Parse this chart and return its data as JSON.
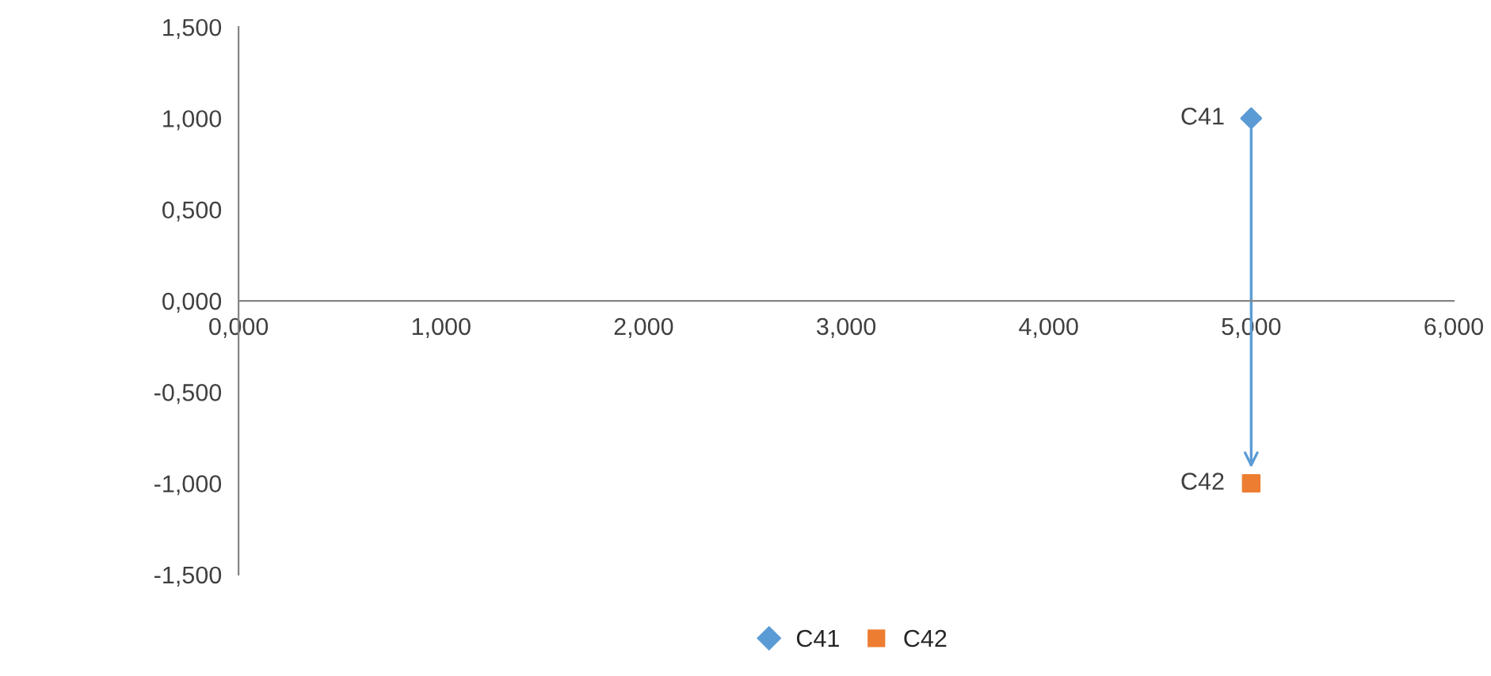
{
  "chart_data": {
    "type": "scatter",
    "series": [
      {
        "name": "C41",
        "color": "#5b9bd5",
        "marker": "diamond",
        "x": [
          5
        ],
        "values": [
          1
        ]
      },
      {
        "name": "C42",
        "color": "#ed7d31",
        "marker": "square",
        "x": [
          5
        ],
        "values": [
          -1
        ]
      }
    ],
    "xlim": [
      0,
      6
    ],
    "ylim": [
      -1.5,
      1.5
    ],
    "xticks": [
      {
        "value": 0,
        "label": "0,000"
      },
      {
        "value": 1,
        "label": "1,000"
      },
      {
        "value": 2,
        "label": "2,000"
      },
      {
        "value": 3,
        "label": "3,000"
      },
      {
        "value": 4,
        "label": "4,000"
      },
      {
        "value": 5,
        "label": "5,000"
      },
      {
        "value": 6,
        "label": "6,000"
      }
    ],
    "yticks": [
      {
        "value": -1.5,
        "label": "-1,500"
      },
      {
        "value": -1,
        "label": "-1,000"
      },
      {
        "value": -0.5,
        "label": "-0,500"
      },
      {
        "value": 0,
        "label": "0,000"
      },
      {
        "value": 0.5,
        "label": "0,500"
      },
      {
        "value": 1,
        "label": "1,000"
      },
      {
        "value": 1.5,
        "label": "1,500"
      }
    ],
    "grid": false,
    "legend": "bottom"
  }
}
